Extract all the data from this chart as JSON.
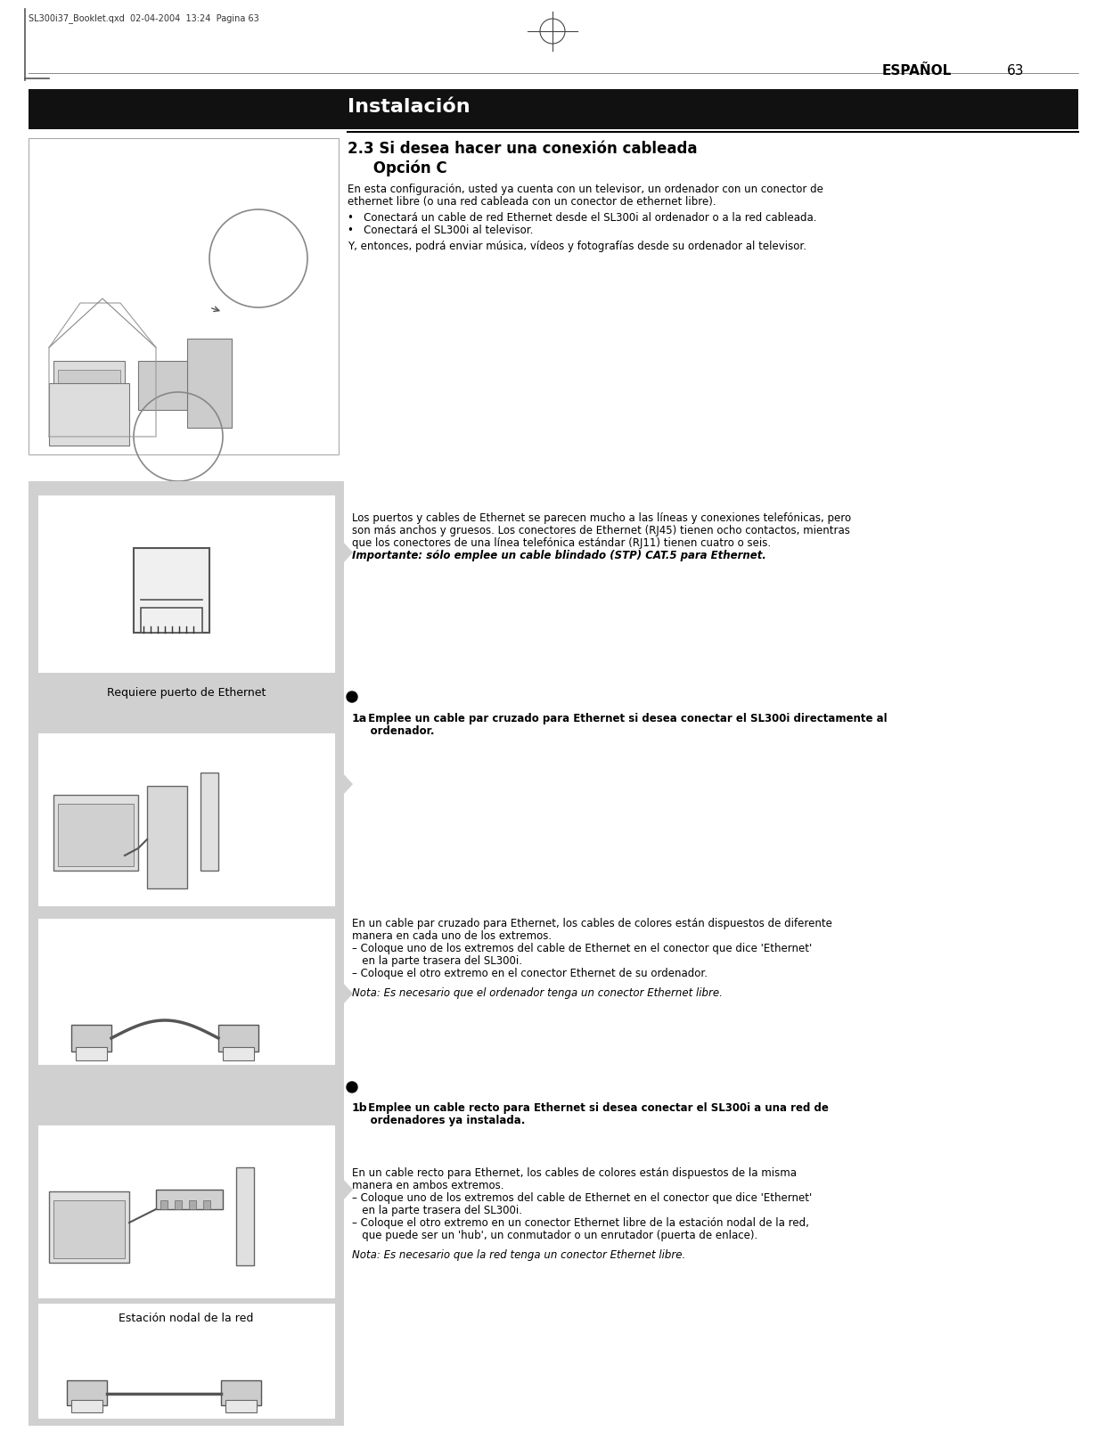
{
  "page_bg": "#ffffff",
  "header_bar_color": "#111111",
  "left_panel_bg": "#d0d0d0",
  "img_box_bg": "#f5f5f5",
  "img_box_border": "#aaaaaa",
  "white_box_bg": "#ffffff",
  "separator_line_color": "#000000",
  "header_text": "Instalación",
  "header_text_color": "#ffffff",
  "espanol_label": "ESPAÑOL",
  "page_number": "63",
  "file_info": "SL300i37_Booklet.qxd  02-04-2004  13:24  Pagina 63",
  "section_title_line1": "2.3 Si desea hacer una conexión cableada",
  "section_title_line2": "     Opción C",
  "para1_line1": "En esta configuración, usted ya cuenta con un televisor, un ordenador con un conector de",
  "para1_line2": "ethernet libre (o una red cableada con un conector de ethernet libre).",
  "bullet1": "•   Conectará un cable de red Ethernet desde el SL300i al ordenador o a la red cableada.",
  "bullet2": "•   Conectará el SL300i al televisor.",
  "para2": "Y, entonces, podrá enviar música, vídeos y fotografías desde su ordenador al televisor.",
  "ethernet_label": "Requiere puerto de Ethernet",
  "eth_body_line1": "Los puertos y cables de Ethernet se parecen mucho a las líneas y conexiones telefónicas, pero",
  "eth_body_line2": "son más anchos y gruesos. Los conectores de Ethernet (RJ45) tienen ocho contactos, mientras",
  "eth_body_line3": "que los conectores de una línea telefónica estándar (RJ11) tienen cuatro o seis.",
  "eth_body_bold": "Importante: sólo emplee un cable blindado (STP) CAT.5 para Ethernet.",
  "step1a_prefix": "1a",
  "step1a_text": " Emplee un cable par cruzado para Ethernet si desea conectar el SL300i directamente al",
  "step1a_text2": "     ordenador.",
  "step1a_body_line1": "En un cable par cruzado para Ethernet, los cables de colores están dispuestos de diferente",
  "step1a_body_line2": "manera en cada uno de los extremos.",
  "step1a_body_line3": "– Coloque uno de los extremos del cable de Ethernet en el conector que dice 'Ethernet'",
  "step1a_body_line4": "   en la parte trasera del SL300i.",
  "step1a_body_line5": "– Coloque el otro extremo en el conector Ethernet de su ordenador.",
  "step1a_note": "Nota: Es necesario que el ordenador tenga un conector Ethernet libre.",
  "step1b_prefix": "1b",
  "step1b_text": " Emplee un cable recto para Ethernet si desea conectar el SL300i a una red de",
  "step1b_text2": "     ordenadores ya instalada.",
  "estacion_label": "Estación nodal de la red",
  "step1b_body_line1": "En un cable recto para Ethernet, los cables de colores están dispuestos de la misma",
  "step1b_body_line2": "manera en ambos extremos.",
  "step1b_body_line3": "– Coloque uno de los extremos del cable de Ethernet en el conector que dice 'Ethernet'",
  "step1b_body_line4": "   en la parte trasera del SL300i.",
  "step1b_body_line5": "– Coloque el otro extremo en un conector Ethernet libre de la estación nodal de la red,",
  "step1b_body_line6": "   que puede ser un 'hub', un conmutador o un enrutador (puerta de enlace).",
  "step1b_note": "Nota: Es necesario que la red tenga un conector Ethernet libre."
}
